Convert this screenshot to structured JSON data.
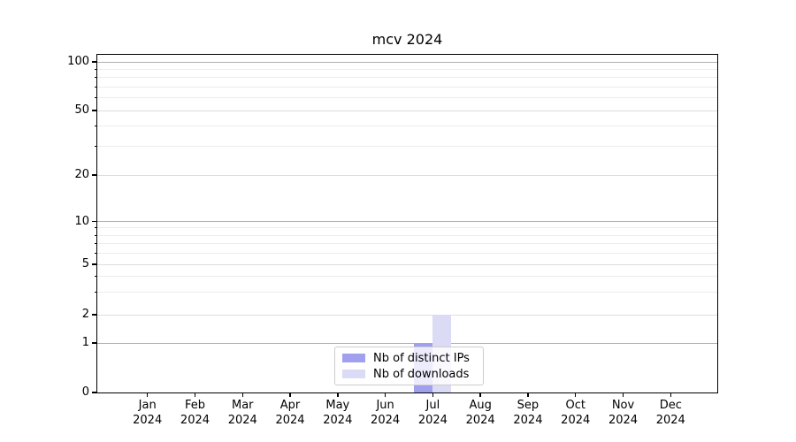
{
  "chart_data": {
    "type": "bar",
    "title": "mcv 2024",
    "categories": [
      "Jan 2024",
      "Feb 2024",
      "Mar 2024",
      "Apr 2024",
      "May 2024",
      "Jun 2024",
      "Jul 2024",
      "Aug 2024",
      "Sep 2024",
      "Oct 2024",
      "Nov 2024",
      "Dec 2024"
    ],
    "series": [
      {
        "name": "Nb of distinct IPs",
        "color": "#a0a0ee",
        "values": [
          0,
          0,
          0,
          0,
          0,
          0,
          1,
          0,
          0,
          0,
          0,
          0
        ]
      },
      {
        "name": "Nb of downloads",
        "color": "#dbdbf6",
        "values": [
          0,
          0,
          0,
          0,
          0,
          0,
          2,
          0,
          0,
          0,
          0,
          0
        ]
      }
    ],
    "xlabel": "",
    "ylabel": "",
    "ylim": [
      0,
      100
    ],
    "yscale": "log-like (log above 1, linear 0-1)",
    "y_major_ticks": [
      0,
      1,
      2,
      5,
      10,
      20,
      50,
      100
    ],
    "y_minor_gridlines": [
      3,
      4,
      6,
      7,
      8,
      9,
      30,
      40,
      60,
      70,
      80,
      90
    ],
    "y_emphasized_gridlines": [
      1,
      10,
      100
    ],
    "grid": true,
    "legend_position": "lower center",
    "colors": {
      "grid_major": "#b0b0b0",
      "grid_mid": "#dddddd",
      "grid_minor": "#ececec",
      "spine": "#000000",
      "legend_border": "#cccccc"
    }
  }
}
